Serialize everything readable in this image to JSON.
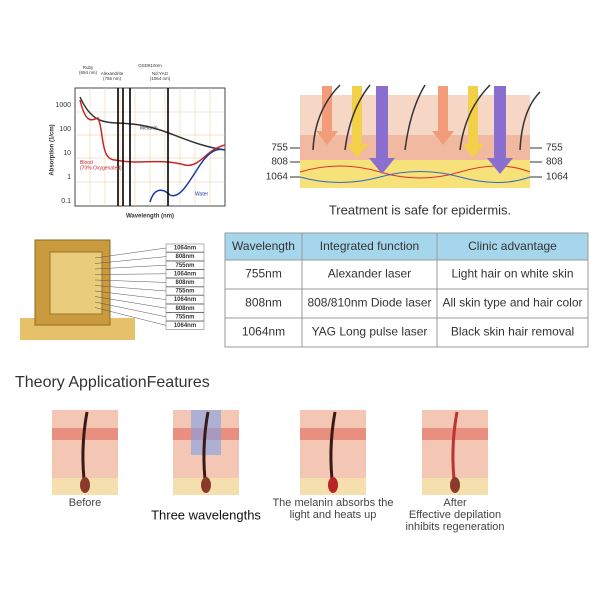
{
  "absorption_chart": {
    "lasers": [
      "Ruby\n(694 nm)",
      "Alexandrite\n(755 nm)",
      "GSD810nm",
      "Nd:YAG\n(1064 nm)"
    ],
    "curves": [
      "Melanin",
      "Blood\n(70% Oxygenated)",
      "Water"
    ],
    "y_label": "Absorption (1/cm)",
    "x_label": "Wavelength (nm)",
    "y_ticks": [
      "1000",
      "100",
      "10",
      "1",
      "0.1"
    ]
  },
  "skin_diagram": {
    "left_labels": [
      "755",
      "808",
      "1064"
    ],
    "right_labels": [
      "755",
      "808",
      "1064"
    ],
    "caption": "Treatment is safe for epidermis."
  },
  "handpiece": {
    "labels": [
      "1064nm",
      "808nm",
      "755nm",
      "1064nm",
      "808nm",
      "755nm",
      "1064nm",
      "808nm",
      "755nm",
      "1064nm"
    ]
  },
  "table": {
    "header": [
      "Wavelength",
      "Integrated function",
      "Clinic advantage"
    ],
    "rows": [
      [
        "755nm",
        "Alexander laser",
        "Light hair on white skin"
      ],
      [
        "808nm",
        "808/810nm Diode laser",
        "All skin type and hair color"
      ],
      [
        "1064nm",
        "YAG Long pulse laser",
        "Black skin hair removal"
      ]
    ]
  },
  "section": {
    "title": "Theory ApplicationFeatures",
    "steps": [
      {
        "caption": [
          "Before"
        ]
      },
      {
        "caption": [
          "Three wavelengths"
        ]
      },
      {
        "caption": [
          "The melanin absorbs the",
          "light and heats up"
        ]
      },
      {
        "caption": [
          "After",
          "Effective depilation",
          "inhibits regeneration"
        ]
      }
    ]
  }
}
